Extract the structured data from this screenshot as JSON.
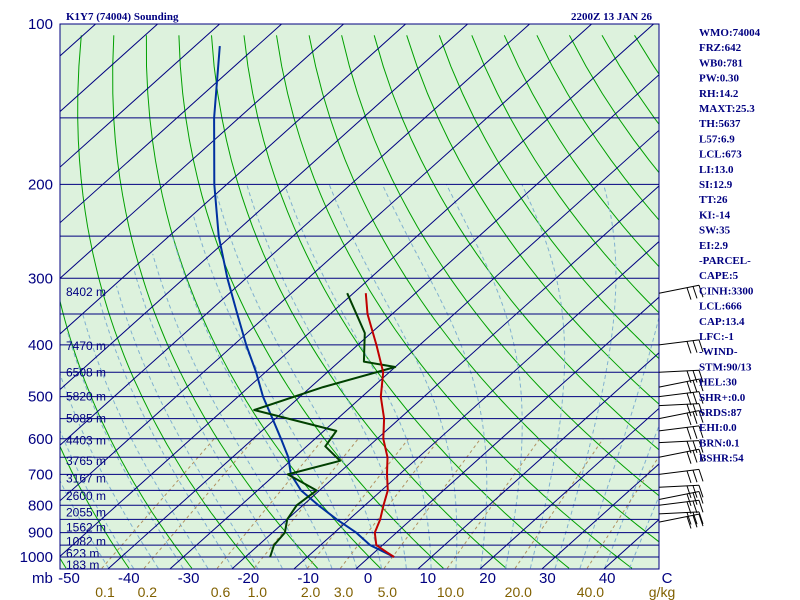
{
  "chart_data": {
    "type": "skew-t",
    "station": "K1Y7 (74004) Sounding",
    "time": "2200Z 13 JAN 26",
    "pressure_labels": [
      "100",
      "200",
      "300",
      "400",
      "500",
      "600",
      "700",
      "800",
      "900",
      "1000"
    ],
    "pressure_units": "mb",
    "temp_ticks": [
      "-50",
      "-40",
      "-30",
      "-20",
      "-10",
      "0",
      "10",
      "20",
      "30",
      "40",
      "C"
    ],
    "mixing_ratio_labels": [
      "0.1",
      "0.2",
      "0.6",
      "1.0",
      "2.0",
      "3.0",
      "5.0",
      "10.0",
      "20.0",
      "40.0",
      "g/kg"
    ],
    "mixing_ratio_values": [
      0.1,
      0.2,
      0.6,
      1.0,
      2.0,
      3.0,
      5.0,
      10.0,
      20.0,
      40.0
    ],
    "height_labels": [
      {
        "p": 318,
        "text": "8402 m"
      },
      {
        "p": 402,
        "text": "7470 m"
      },
      {
        "p": 451,
        "text": "6508 m"
      },
      {
        "p": 500,
        "text": "5820 m"
      },
      {
        "p": 550,
        "text": "5085 m"
      },
      {
        "p": 605,
        "text": "4403 m"
      },
      {
        "p": 660,
        "text": "3765 m"
      },
      {
        "p": 712,
        "text": "3167 m"
      },
      {
        "p": 768,
        "text": "2600 m"
      },
      {
        "p": 825,
        "text": "2055 m"
      },
      {
        "p": 881,
        "text": "1562 m"
      },
      {
        "p": 935,
        "text": "1082 m"
      },
      {
        "p": 985,
        "text": "623 m"
      },
      {
        "p": 1035,
        "text": "183 m"
      }
    ],
    "temperature": [
      {
        "p": 1000,
        "t": 4.0
      },
      {
        "p": 980,
        "t": 2.0
      },
      {
        "p": 950,
        "t": -1.0
      },
      {
        "p": 900,
        "t": -3.5
      },
      {
        "p": 850,
        "t": -5.0
      },
      {
        "p": 800,
        "t": -7.0
      },
      {
        "p": 750,
        "t": -9.0
      },
      {
        "p": 700,
        "t": -12.0
      },
      {
        "p": 650,
        "t": -15.0
      },
      {
        "p": 600,
        "t": -19.0
      },
      {
        "p": 550,
        "t": -22.5
      },
      {
        "p": 500,
        "t": -27.0
      },
      {
        "p": 450,
        "t": -31.0
      },
      {
        "p": 400,
        "t": -37.0
      },
      {
        "p": 350,
        "t": -44.0
      },
      {
        "p": 320,
        "t": -48.0
      }
    ],
    "dewpoint": [
      {
        "p": 1000,
        "t": -16.0
      },
      {
        "p": 950,
        "t": -17.5
      },
      {
        "p": 900,
        "t": -18.0
      },
      {
        "p": 850,
        "t": -20.0
      },
      {
        "p": 800,
        "t": -21.0
      },
      {
        "p": 750,
        "t": -20.5
      },
      {
        "p": 700,
        "t": -28.0
      },
      {
        "p": 660,
        "t": -22.0
      },
      {
        "p": 620,
        "t": -27.0
      },
      {
        "p": 580,
        "t": -28.0
      },
      {
        "p": 530,
        "t": -45.0
      },
      {
        "p": 480,
        "t": -38.0
      },
      {
        "p": 440,
        "t": -30.0
      },
      {
        "p": 430,
        "t": -36.0
      },
      {
        "p": 380,
        "t": -41.0
      },
      {
        "p": 320,
        "t": -51.0
      }
    ],
    "parcel": [
      {
        "p": 1000,
        "t": 4.0
      },
      {
        "p": 950,
        "t": -2.0
      },
      {
        "p": 900,
        "t": -6.5
      },
      {
        "p": 850,
        "t": -12.0
      },
      {
        "p": 800,
        "t": -17.5
      },
      {
        "p": 750,
        "t": -23.0
      },
      {
        "p": 700,
        "t": -27.5
      },
      {
        "p": 650,
        "t": -31.0
      },
      {
        "p": 600,
        "t": -35.5
      },
      {
        "p": 550,
        "t": -40.5
      },
      {
        "p": 500,
        "t": -46.0
      },
      {
        "p": 450,
        "t": -51.5
      },
      {
        "p": 400,
        "t": -58.0
      },
      {
        "p": 350,
        "t": -65.0
      },
      {
        "p": 300,
        "t": -73.0
      },
      {
        "p": 250,
        "t": -82.0
      },
      {
        "p": 200,
        "t": -92.0
      },
      {
        "p": 150,
        "t": -104.0
      },
      {
        "p": 110,
        "t": -116.0
      }
    ],
    "wind_pressures": [
      320,
      400,
      450,
      480,
      500,
      520,
      550,
      580,
      610,
      650,
      700,
      740,
      780,
      800,
      830,
      860
    ],
    "indices": [
      "WMO:74004",
      "FRZ:642",
      "WB0:781",
      "PW:0.30",
      "RH:14.2",
      "MAXT:25.3",
      "TH:5637",
      "L57:6.9",
      "LCL:673",
      "LI:13.0",
      "SI:12.9",
      "TT:26",
      "KI:-14",
      "SW:35",
      "EI:2.9",
      "-PARCEL-",
      "CAPE:5",
      "CINH:3300",
      "LCL:666",
      "CAP:13.4",
      "LFC:-1",
      "-WIND-",
      "STM:90/13",
      "HEL:30",
      "SHR+:0.0",
      "SRDS:87",
      "EHI:0.0",
      "BRN:0.1",
      "BSHR:54"
    ],
    "colors": {
      "isobar": "#000080",
      "isotherm": "#000080",
      "dry_adiabat": "#00a000",
      "moist_adiabat": "#80b0d0",
      "mixing_ratio": "#b09060",
      "temperature": "#c00000",
      "dewpoint": "#004000",
      "parcel": "#0030a0",
      "plot_bg": "#ddf2dd"
    }
  }
}
